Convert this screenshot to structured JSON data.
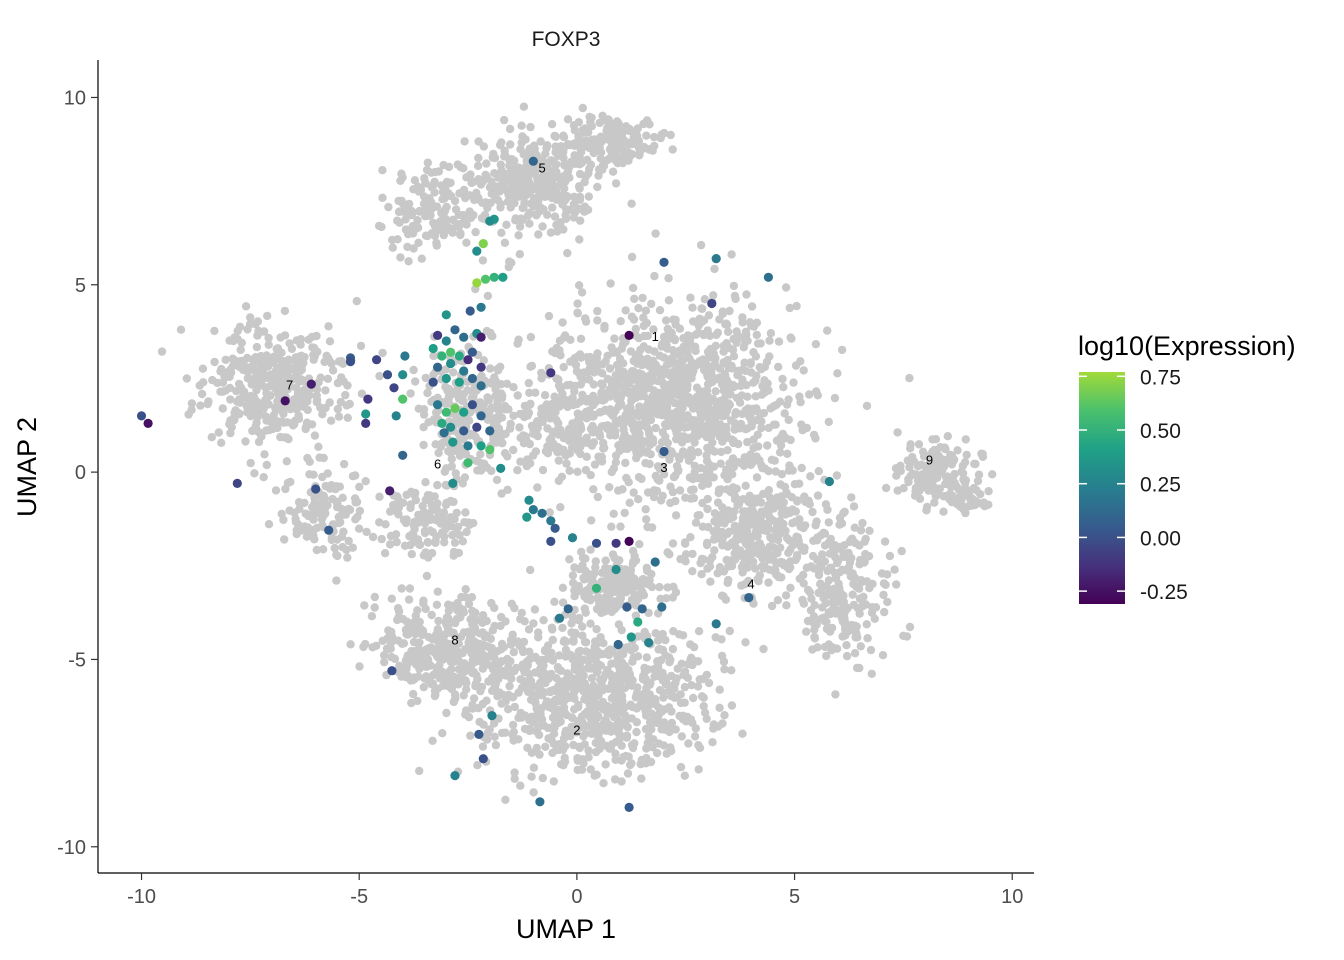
{
  "chart_data": {
    "type": "scatter",
    "title": "FOXP3",
    "xlabel": "UMAP 1",
    "ylabel": "UMAP 2",
    "xlim": [
      -11,
      10.5
    ],
    "ylim": [
      -10.7,
      11
    ],
    "xticks": [
      -10,
      -5,
      0,
      5,
      10
    ],
    "yticks": [
      -10,
      -5,
      0,
      5,
      10
    ],
    "xtick_labels": [
      "-10",
      "-5",
      "0",
      "5",
      "10"
    ],
    "ytick_labels": [
      "-10",
      "-5",
      "0",
      "5",
      "10"
    ],
    "grid": false,
    "background_color": "#c8c8c8",
    "cluster_labels": [
      {
        "label": "1",
        "x": 1.8,
        "y": 3.5
      },
      {
        "label": "2",
        "x": 0.0,
        "y": -7.0
      },
      {
        "label": "3",
        "x": 2.0,
        "y": 0.0
      },
      {
        "label": "4",
        "x": 4.0,
        "y": -3.1
      },
      {
        "label": "5",
        "x": -0.8,
        "y": 8.0
      },
      {
        "label": "6",
        "x": -3.2,
        "y": 0.1
      },
      {
        "label": "7",
        "x": -6.6,
        "y": 2.2
      },
      {
        "label": "8",
        "x": -2.8,
        "y": -4.6
      },
      {
        "label": "9",
        "x": 8.1,
        "y": 0.2
      }
    ],
    "legend": {
      "title": "log10(Expression)",
      "position": "right",
      "range": [
        -0.31,
        0.77
      ],
      "ticks": [
        0.75,
        0.5,
        0.25,
        0.0,
        -0.25
      ],
      "tick_labels": [
        "0.75",
        "0.50",
        "0.25",
        "0.00",
        "-0.25"
      ],
      "palette": [
        "#440154",
        "#46327e",
        "#365c8d",
        "#277f8e",
        "#1fa187",
        "#4ac16d",
        "#a0da39"
      ]
    },
    "series": [
      {
        "values": [
          {
            "x": -1.0,
            "y": 8.3,
            "c": 0.1
          },
          {
            "x": -1.9,
            "y": 6.75,
            "c": 0.35
          },
          {
            "x": -2.0,
            "y": 6.7,
            "c": 0.3
          },
          {
            "x": -2.15,
            "y": 6.1,
            "c": 0.7
          },
          {
            "x": -2.3,
            "y": 5.9,
            "c": 0.3
          },
          {
            "x": -2.3,
            "y": 5.05,
            "c": 0.75
          },
          {
            "x": -2.1,
            "y": 5.15,
            "c": 0.6
          },
          {
            "x": -1.9,
            "y": 5.2,
            "c": 0.5
          },
          {
            "x": -1.7,
            "y": 5.2,
            "c": 0.4
          },
          {
            "x": -2.45,
            "y": 4.3,
            "c": 0.05
          },
          {
            "x": -2.2,
            "y": 4.4,
            "c": 0.2
          },
          {
            "x": -3.0,
            "y": 4.2,
            "c": 0.35
          },
          {
            "x": -2.8,
            "y": 3.8,
            "c": 0.1
          },
          {
            "x": -3.2,
            "y": 3.65,
            "c": -0.1
          },
          {
            "x": -3.0,
            "y": 3.5,
            "c": 0.25
          },
          {
            "x": -2.6,
            "y": 3.6,
            "c": 0.15
          },
          {
            "x": -2.3,
            "y": 3.7,
            "c": 0.3
          },
          {
            "x": -2.2,
            "y": 3.6,
            "c": -0.2
          },
          {
            "x": -3.3,
            "y": 3.3,
            "c": 0.4
          },
          {
            "x": -3.1,
            "y": 3.1,
            "c": 0.5
          },
          {
            "x": -2.9,
            "y": 3.2,
            "c": 0.6
          },
          {
            "x": -2.7,
            "y": 3.1,
            "c": 0.45
          },
          {
            "x": -2.5,
            "y": 3.0,
            "c": -0.15
          },
          {
            "x": -2.4,
            "y": 3.2,
            "c": 0.05
          },
          {
            "x": -3.2,
            "y": 2.8,
            "c": 0.1
          },
          {
            "x": -2.9,
            "y": 2.9,
            "c": 0.3
          },
          {
            "x": -2.6,
            "y": 2.7,
            "c": 0.2
          },
          {
            "x": -2.2,
            "y": 2.8,
            "c": -0.1
          },
          {
            "x": -3.3,
            "y": 2.4,
            "c": 0.0
          },
          {
            "x": -3.0,
            "y": 2.5,
            "c": 0.35
          },
          {
            "x": -2.7,
            "y": 2.4,
            "c": 0.4
          },
          {
            "x": -2.4,
            "y": 2.5,
            "c": 0.1
          },
          {
            "x": -2.2,
            "y": 2.3,
            "c": 0.15
          },
          {
            "x": -3.2,
            "y": 1.8,
            "c": 0.2
          },
          {
            "x": -3.0,
            "y": 1.6,
            "c": 0.55
          },
          {
            "x": -2.8,
            "y": 1.7,
            "c": 0.65
          },
          {
            "x": -2.6,
            "y": 1.6,
            "c": 0.4
          },
          {
            "x": -2.4,
            "y": 1.8,
            "c": 0.0
          },
          {
            "x": -2.2,
            "y": 1.5,
            "c": 0.1
          },
          {
            "x": -3.1,
            "y": 1.3,
            "c": 0.45
          },
          {
            "x": -2.9,
            "y": 1.2,
            "c": 0.3
          },
          {
            "x": -2.6,
            "y": 1.1,
            "c": 0.05
          },
          {
            "x": -2.3,
            "y": 1.2,
            "c": -0.05
          },
          {
            "x": -2.0,
            "y": 1.1,
            "c": 0.1
          },
          {
            "x": -3.05,
            "y": 1.05,
            "c": 0.15
          },
          {
            "x": -2.85,
            "y": 0.8,
            "c": 0.35
          },
          {
            "x": -2.5,
            "y": 0.7,
            "c": 0.2
          },
          {
            "x": -2.2,
            "y": 0.7,
            "c": 0.4
          },
          {
            "x": -2.0,
            "y": 0.6,
            "c": 0.6
          },
          {
            "x": -2.5,
            "y": 0.25,
            "c": 0.55
          },
          {
            "x": -1.75,
            "y": 0.1,
            "c": 0.3
          },
          {
            "x": -2.85,
            "y": -0.3,
            "c": 0.3
          },
          {
            "x": -4.6,
            "y": 3.0,
            "c": -0.05
          },
          {
            "x": -4.35,
            "y": 2.6,
            "c": 0.0
          },
          {
            "x": -3.95,
            "y": 3.1,
            "c": 0.2
          },
          {
            "x": -4.0,
            "y": 2.6,
            "c": 0.3
          },
          {
            "x": -4.2,
            "y": 2.25,
            "c": -0.05
          },
          {
            "x": -4.8,
            "y": 1.95,
            "c": -0.1
          },
          {
            "x": -4.0,
            "y": 1.95,
            "c": 0.6
          },
          {
            "x": -4.85,
            "y": 1.55,
            "c": 0.35
          },
          {
            "x": -4.85,
            "y": 1.3,
            "c": -0.1
          },
          {
            "x": -4.15,
            "y": 1.5,
            "c": 0.25
          },
          {
            "x": -4.0,
            "y": 0.45,
            "c": 0.1
          },
          {
            "x": -5.2,
            "y": 3.05,
            "c": 0.05
          },
          {
            "x": -5.2,
            "y": 2.95,
            "c": 0.0
          },
          {
            "x": -4.3,
            "y": -0.5,
            "c": -0.2
          },
          {
            "x": -6.1,
            "y": 2.35,
            "c": -0.2
          },
          {
            "x": -6.7,
            "y": 1.9,
            "c": -0.25
          },
          {
            "x": -6.0,
            "y": -0.45,
            "c": 0.0
          },
          {
            "x": -5.7,
            "y": -1.55,
            "c": 0.05
          },
          {
            "x": -7.8,
            "y": -0.3,
            "c": -0.05
          },
          {
            "x": -10.0,
            "y": 1.5,
            "c": 0.0
          },
          {
            "x": -9.85,
            "y": 1.3,
            "c": -0.25
          },
          {
            "x": 1.2,
            "y": 3.65,
            "c": -0.3
          },
          {
            "x": -0.6,
            "y": 2.65,
            "c": -0.1
          },
          {
            "x": 2.0,
            "y": 5.6,
            "c": 0.05
          },
          {
            "x": 3.2,
            "y": 5.7,
            "c": 0.2
          },
          {
            "x": 4.4,
            "y": 5.2,
            "c": 0.15
          },
          {
            "x": 3.1,
            "y": 4.5,
            "c": -0.05
          },
          {
            "x": 2.0,
            "y": 0.55,
            "c": 0.05
          },
          {
            "x": 5.8,
            "y": -0.25,
            "c": 0.25
          },
          {
            "x": -1.1,
            "y": -0.75,
            "c": 0.3
          },
          {
            "x": -1.0,
            "y": -1.0,
            "c": 0.2
          },
          {
            "x": -1.15,
            "y": -1.2,
            "c": 0.35
          },
          {
            "x": -0.8,
            "y": -1.1,
            "c": 0.15
          },
          {
            "x": -0.6,
            "y": -1.3,
            "c": 0.2
          },
          {
            "x": -0.5,
            "y": -1.5,
            "c": 0.05
          },
          {
            "x": -0.6,
            "y": -1.85,
            "c": 0.0
          },
          {
            "x": -0.1,
            "y": -1.75,
            "c": 0.25
          },
          {
            "x": 0.45,
            "y": -1.9,
            "c": 0.0
          },
          {
            "x": 0.9,
            "y": -1.9,
            "c": -0.1
          },
          {
            "x": 1.2,
            "y": -1.85,
            "c": -0.3
          },
          {
            "x": 1.8,
            "y": -2.4,
            "c": 0.15
          },
          {
            "x": 0.9,
            "y": -2.6,
            "c": 0.3
          },
          {
            "x": 0.45,
            "y": -3.1,
            "c": 0.5
          },
          {
            "x": -0.2,
            "y": -3.65,
            "c": 0.1
          },
          {
            "x": -0.4,
            "y": -3.9,
            "c": 0.2
          },
          {
            "x": 1.15,
            "y": -3.6,
            "c": 0.05
          },
          {
            "x": 1.5,
            "y": -3.65,
            "c": 0.1
          },
          {
            "x": 1.95,
            "y": -3.6,
            "c": 0.15
          },
          {
            "x": 1.4,
            "y": -4.0,
            "c": 0.45
          },
          {
            "x": 1.25,
            "y": -4.4,
            "c": 0.35
          },
          {
            "x": 0.95,
            "y": -4.6,
            "c": 0.1
          },
          {
            "x": 1.65,
            "y": -4.55,
            "c": 0.25
          },
          {
            "x": 3.2,
            "y": -4.05,
            "c": 0.2
          },
          {
            "x": 3.95,
            "y": -3.35,
            "c": 0.1
          },
          {
            "x": -4.25,
            "y": -5.3,
            "c": 0.0
          },
          {
            "x": -1.95,
            "y": -6.5,
            "c": 0.25
          },
          {
            "x": -2.25,
            "y": -7.0,
            "c": 0.05
          },
          {
            "x": -2.15,
            "y": -7.65,
            "c": 0.0
          },
          {
            "x": -2.8,
            "y": -8.1,
            "c": 0.25
          },
          {
            "x": -0.85,
            "y": -8.8,
            "c": 0.15
          },
          {
            "x": 1.2,
            "y": -8.95,
            "c": 0.05
          }
        ]
      }
    ]
  }
}
